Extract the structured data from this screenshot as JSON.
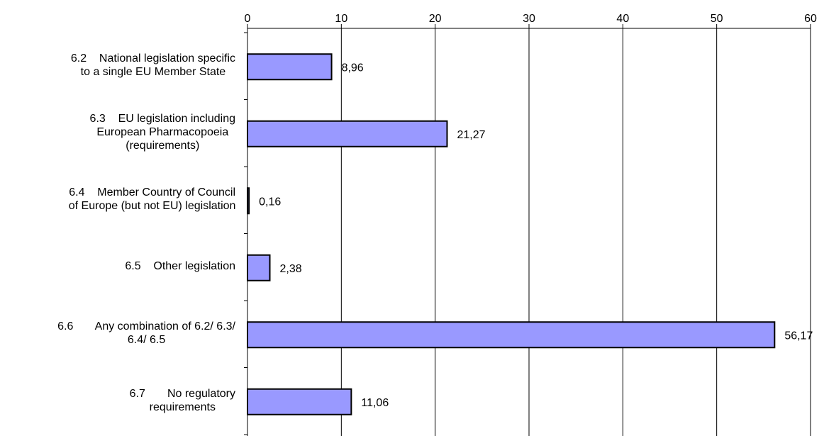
{
  "chart_data": {
    "type": "bar",
    "orientation": "horizontal",
    "categories": [
      [
        "6.2    National legislation specific",
        "to a single EU Member State"
      ],
      [
        "6.3    EU legislation including",
        "European Pharmacopoeia",
        "(requirements)"
      ],
      [
        "6.4    Member Country of Council",
        "of Europe (but not EU) legislation"
      ],
      [
        "6.5    Other legislation"
      ],
      [
        "6.6       Any combination of 6.2/ 6.3/",
        "6.4/ 6.5"
      ],
      [
        "6.7       No regulatory",
        "requirements"
      ]
    ],
    "values": [
      8.96,
      21.27,
      0.16,
      2.38,
      56.17,
      11.06
    ],
    "value_labels": [
      "8,96",
      "21,27",
      "0,16",
      "2,38",
      "56,17",
      "11,06"
    ],
    "xlim": [
      0,
      60
    ],
    "x_ticks": [
      0,
      10,
      20,
      30,
      40,
      50,
      60
    ],
    "x_axis_position": "top",
    "grid": true,
    "bar_color": "#9999ff",
    "bar_edge_color": "#000000"
  }
}
